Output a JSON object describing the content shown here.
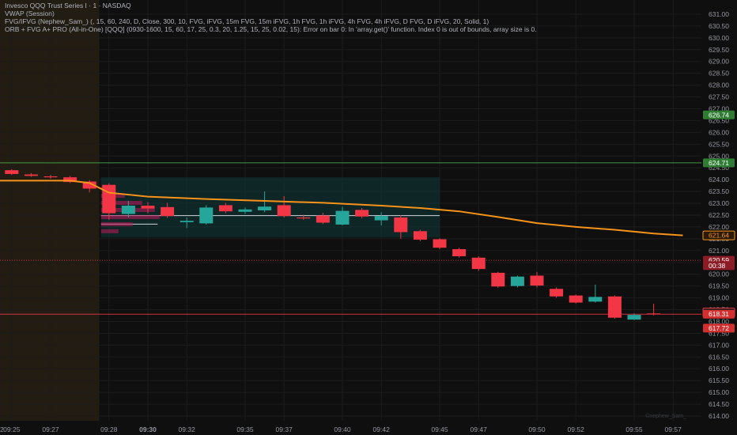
{
  "header": {
    "symbol_line": "Invesco QQQ Trust Series I · 1 · NASDAQ",
    "indicators": [
      "VWAP (Session)",
      "FVG/IFVG (Nephew_Sam_) (, 15, 60, 240, D, Close, 300, 10, FVG, iFVG, 15m FVG, 15m iFVG, 1h FVG, 1h iFVG, 4h FVG, 4h iFVG, D FVG, D iFVG, 20, Solid, 1)",
      "ORB + FVG A+ PRO (All-in-One) [QQQ] (0930-1600, 15, 60, 17, 25, 0.3, 20, 1.25, 15, 25, 0.02, 15): Error on bar 0: In 'array.get()' function. Index 0 is out of bounds, array size is 0."
    ]
  },
  "watermark": "©nephew_Sam_",
  "colors": {
    "background": "#0f0f0f",
    "up": "#26a69a",
    "down": "#f23645",
    "vwap": "#f7931a",
    "premarket": "#2a2214",
    "grid": "#1c1c1c",
    "green_level": "#4caf50",
    "red_level": "#f23645",
    "box": "#0f3a3a",
    "volume_profile": "#c2185b"
  },
  "chart_data": {
    "type": "candlestick",
    "timeframe": "1",
    "ylim": [
      613.8,
      631.6
    ],
    "y_ticks": [
      614.0,
      614.5,
      615.0,
      615.5,
      616.0,
      616.5,
      617.0,
      617.5,
      618.0,
      618.5,
      619.0,
      619.5,
      620.0,
      620.5,
      621.0,
      621.5,
      622.0,
      622.5,
      623.0,
      623.5,
      624.0,
      624.5,
      625.0,
      625.5,
      626.0,
      626.5,
      627.0,
      627.5,
      628.0,
      628.5,
      629.0,
      629.5,
      630.0,
      630.5,
      631.0
    ],
    "y_tick_labels": [
      "614.00",
      "614.50",
      "615.00",
      "615.50",
      "616.00",
      "616.50",
      "617.00",
      "617.50",
      "618.00",
      "618.50",
      "619.00",
      "619.50",
      "620.00",
      "620.50",
      "621.00",
      "621.50",
      "622.00",
      "622.50",
      "623.00",
      "623.50",
      "624.00",
      "624.50",
      "625.00",
      "625.50",
      "626.00",
      "626.50",
      "627.00",
      "627.50",
      "628.00",
      "628.50",
      "629.00",
      "629.50",
      "630.00",
      "630.50",
      "631.00"
    ],
    "x_tick_labels": [
      {
        "i": -12,
        "label": "2"
      },
      {
        "i": -7,
        "label": "09:25"
      },
      {
        "i": -5,
        "label": "09:27"
      },
      {
        "i": -2,
        "label": "09:28"
      },
      {
        "i": 0,
        "label": "09:30",
        "bold": true
      },
      {
        "i": 2,
        "label": "09:32"
      },
      {
        "i": 5,
        "label": "09:35"
      },
      {
        "i": 7,
        "label": "09:37"
      },
      {
        "i": 10,
        "label": "09:40"
      },
      {
        "i": 12,
        "label": "09:42"
      },
      {
        "i": 15,
        "label": "09:45"
      },
      {
        "i": 17,
        "label": "09:47"
      },
      {
        "i": 20,
        "label": "09:50"
      },
      {
        "i": 22,
        "label": "09:52"
      },
      {
        "i": 25,
        "label": "09:55"
      },
      {
        "i": 27,
        "label": "09:57"
      }
    ],
    "candles": [
      {
        "i": -11,
        "o": 624.52,
        "h": 624.6,
        "l": 624.4,
        "c": 624.44
      },
      {
        "i": -10,
        "o": 624.42,
        "h": 624.45,
        "l": 624.36,
        "c": 624.38
      },
      {
        "i": -9,
        "o": 624.4,
        "h": 624.47,
        "l": 624.38,
        "c": 624.42
      },
      {
        "i": -8,
        "o": 624.36,
        "h": 624.48,
        "l": 624.34,
        "c": 624.44
      },
      {
        "i": -7,
        "o": 624.4,
        "h": 624.44,
        "l": 624.2,
        "c": 624.24
      },
      {
        "i": -6,
        "o": 624.22,
        "h": 624.28,
        "l": 624.12,
        "c": 624.16
      },
      {
        "i": -5,
        "o": 624.14,
        "h": 624.2,
        "l": 624.04,
        "c": 624.1
      },
      {
        "i": -4,
        "o": 624.1,
        "h": 624.16,
        "l": 623.86,
        "c": 623.9
      },
      {
        "i": -3,
        "o": 623.92,
        "h": 623.98,
        "l": 623.46,
        "c": 623.62
      },
      {
        "i": -2,
        "o": 623.78,
        "h": 623.85,
        "l": 622.3,
        "c": 622.58
      },
      {
        "i": -1,
        "o": 622.55,
        "h": 623.1,
        "l": 622.4,
        "c": 622.9
      },
      {
        "i": 0,
        "o": 622.9,
        "h": 623.05,
        "l": 622.58,
        "c": 622.78
      },
      {
        "i": 1,
        "o": 622.84,
        "h": 623.02,
        "l": 622.38,
        "c": 622.46
      },
      {
        "i": 2,
        "o": 622.2,
        "h": 622.4,
        "l": 621.95,
        "c": 622.26
      },
      {
        "i": 3,
        "o": 622.15,
        "h": 622.92,
        "l": 622.1,
        "c": 622.82
      },
      {
        "i": 4,
        "o": 622.92,
        "h": 623.02,
        "l": 622.58,
        "c": 622.66
      },
      {
        "i": 5,
        "o": 622.64,
        "h": 622.82,
        "l": 622.55,
        "c": 622.74
      },
      {
        "i": 6,
        "o": 622.7,
        "h": 623.5,
        "l": 622.62,
        "c": 622.86
      },
      {
        "i": 7,
        "o": 622.92,
        "h": 623.3,
        "l": 622.4,
        "c": 622.46
      },
      {
        "i": 8,
        "o": 622.4,
        "h": 622.52,
        "l": 622.3,
        "c": 622.36
      },
      {
        "i": 9,
        "o": 622.48,
        "h": 622.6,
        "l": 622.12,
        "c": 622.18
      },
      {
        "i": 10,
        "o": 622.1,
        "h": 622.85,
        "l": 622.06,
        "c": 622.68
      },
      {
        "i": 11,
        "o": 622.72,
        "h": 622.8,
        "l": 622.36,
        "c": 622.44
      },
      {
        "i": 12,
        "o": 622.28,
        "h": 622.62,
        "l": 622.06,
        "c": 622.46
      },
      {
        "i": 13,
        "o": 622.4,
        "h": 622.5,
        "l": 621.5,
        "c": 621.78
      },
      {
        "i": 14,
        "o": 621.82,
        "h": 621.88,
        "l": 621.4,
        "c": 621.46
      },
      {
        "i": 15,
        "o": 621.48,
        "h": 621.52,
        "l": 621.06,
        "c": 621.12
      },
      {
        "i": 16,
        "o": 621.06,
        "h": 621.12,
        "l": 620.7,
        "c": 620.76
      },
      {
        "i": 17,
        "o": 620.7,
        "h": 620.76,
        "l": 620.14,
        "c": 620.22
      },
      {
        "i": 18,
        "o": 620.06,
        "h": 620.1,
        "l": 619.42,
        "c": 619.48
      },
      {
        "i": 19,
        "o": 619.5,
        "h": 619.94,
        "l": 619.44,
        "c": 619.9
      },
      {
        "i": 20,
        "o": 619.94,
        "h": 620.1,
        "l": 619.44,
        "c": 619.52
      },
      {
        "i": 21,
        "o": 619.38,
        "h": 619.44,
        "l": 619.0,
        "c": 619.06
      },
      {
        "i": 22,
        "o": 619.1,
        "h": 619.14,
        "l": 618.76,
        "c": 618.8
      },
      {
        "i": 23,
        "o": 618.84,
        "h": 619.56,
        "l": 618.8,
        "c": 619.04
      },
      {
        "i": 24,
        "o": 619.06,
        "h": 619.1,
        "l": 618.12,
        "c": 618.16
      },
      {
        "i": 25,
        "o": 618.08,
        "h": 618.34,
        "l": 618.06,
        "c": 618.28
      },
      {
        "i": 26,
        "o": 618.34,
        "h": 618.75,
        "l": 618.26,
        "c": 618.32
      }
    ],
    "vwap": [
      {
        "i": -13,
        "v": 623.96
      },
      {
        "i": -4,
        "v": 623.96
      },
      {
        "i": -3,
        "v": 623.86
      },
      {
        "i": -2,
        "v": 623.45
      },
      {
        "i": 0,
        "v": 623.28
      },
      {
        "i": 3,
        "v": 623.18
      },
      {
        "i": 6,
        "v": 623.1
      },
      {
        "i": 9,
        "v": 623.02
      },
      {
        "i": 12,
        "v": 622.9
      },
      {
        "i": 14,
        "v": 622.8
      },
      {
        "i": 16,
        "v": 622.66
      },
      {
        "i": 18,
        "v": 622.42
      },
      {
        "i": 20,
        "v": 622.16
      },
      {
        "i": 22,
        "v": 622.0
      },
      {
        "i": 24,
        "v": 621.88
      },
      {
        "i": 26,
        "v": 621.72
      },
      {
        "i": 27.5,
        "v": 621.64
      }
    ],
    "levels": [
      {
        "y": 624.71,
        "color": "#4caf50",
        "style": "solid"
      },
      {
        "y": 620.59,
        "color": "#f23645",
        "style": "dotted"
      },
      {
        "y": 618.31,
        "color": "#f23645",
        "style": "solid"
      }
    ],
    "orb_box": {
      "i_start": -2,
      "i_end": 15,
      "y_top": 624.1,
      "y_bottom": 621.55
    },
    "orb_lines": [
      {
        "y": 622.48,
        "i_start": -2,
        "i_end": 15
      },
      {
        "y": 622.12,
        "i_start": -2,
        "i_end": 0.5
      }
    ],
    "premarket_until_i": -2.5,
    "price_tags": [
      {
        "y": 626.74,
        "label": "626.74",
        "bg": "#2e7d32",
        "fg": "#ffffff"
      },
      {
        "y": 624.71,
        "label": "624.71",
        "bg": "#2e7d32",
        "fg": "#ffffff"
      },
      {
        "y": 621.64,
        "label": "621.64",
        "bg": "#2a1a0c",
        "fg": "#f7931a",
        "border": "#f7931a"
      },
      {
        "y": 620.59,
        "label": "620.59",
        "bg": "#8b1c26",
        "fg": "#ffffff"
      },
      {
        "y": 620.36,
        "label": "00:38",
        "bg": "#8b1c26",
        "fg": "#ffffff"
      },
      {
        "y": 618.38,
        "label": "618.38",
        "bg": "#1a1a1a",
        "fg": "#d1d4dc",
        "border": "#f23645"
      },
      {
        "y": 618.31,
        "label": "618.31",
        "bg": "#d32f2f",
        "fg": "#ffffff"
      },
      {
        "y": 617.72,
        "label": "617.72",
        "bg": "#d32f2f",
        "fg": "#ffffff"
      }
    ]
  }
}
